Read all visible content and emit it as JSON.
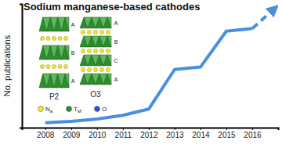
{
  "chart_data": {
    "type": "line",
    "title": "Sodium manganese-based cathodes",
    "y_label": "No. publications",
    "xlim": [
      2007.1,
      2017
    ],
    "xticks": [
      2008,
      2009,
      2010,
      2011,
      2012,
      2013,
      2014,
      2015,
      2016
    ],
    "ylim": [
      0,
      100
    ],
    "yticks": [],
    "tick_labels": "x",
    "grid": false,
    "series": [
      {
        "x": [
          2008,
          2009,
          2010,
          2011,
          2012,
          2013,
          2014,
          2015,
          2016
        ],
        "values": [
          4,
          5,
          7,
          10,
          15,
          47,
          49,
          78,
          80
        ],
        "color": "#4a8fdf",
        "line_style": "solid"
      },
      {
        "x": [
          2016,
          2016.85
        ],
        "values": [
          80,
          96
        ],
        "color": "#4a8fdf",
        "line_style": "dashed",
        "marker": "arrow"
      }
    ],
    "annotations": [
      "P2",
      "O3",
      "Na",
      "TM",
      "O",
      "A",
      "B",
      "A",
      "A",
      "B",
      "C",
      "A"
    ]
  }
}
